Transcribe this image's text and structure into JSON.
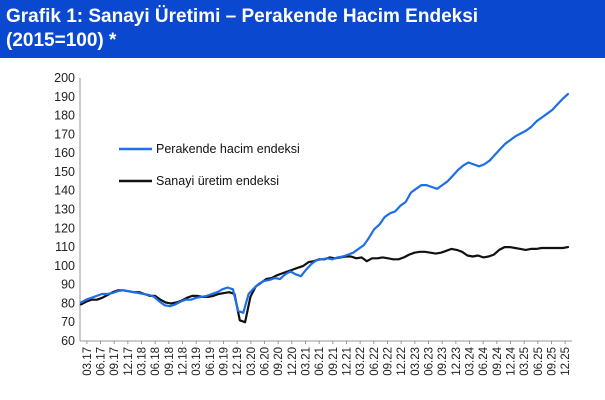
{
  "title": {
    "line1": "Grafik 1: Sanayi Üretimi – Perakende Hacim Endeksi",
    "line2": "(2015=100) *"
  },
  "chart_data": {
    "type": "line",
    "title": "Grafik 1: Sanayi Üretimi – Perakende Hacim Endeksi (2015=100) *",
    "ylim": [
      60,
      200
    ],
    "yticks": [
      60,
      70,
      80,
      90,
      100,
      110,
      120,
      130,
      140,
      150,
      160,
      170,
      180,
      190,
      200
    ],
    "grid": false,
    "legend_position": "upper-left",
    "xlabels": [
      "03.17",
      "06.17",
      "09.17",
      "12.17",
      "03.18",
      "06.18",
      "09.18",
      "12.18",
      "03.19",
      "06.19",
      "09.19",
      "12.19",
      "03.20",
      "06.20",
      "09.20",
      "12.20",
      "03.21",
      "06.21",
      "09.21",
      "12.21",
      "03.22",
      "06.22",
      "09.22",
      "12.22",
      "03.23",
      "06.23",
      "09.23",
      "12.23",
      "03.24",
      "06.24",
      "09.24",
      "12.24",
      "03.25",
      "06.25",
      "09.25",
      "12.25"
    ],
    "series": [
      {
        "name": "Perakende hacim endeksi",
        "color": "#1e6ee8",
        "values": [
          80.5,
          82,
          83,
          84,
          85,
          85,
          85.5,
          86.5,
          87,
          86.5,
          86,
          85.5,
          85,
          84.5,
          83.5,
          81,
          79,
          78.5,
          79.5,
          81,
          82,
          82,
          83,
          83.5,
          84,
          85,
          86,
          87.5,
          88.5,
          87.5,
          76,
          75,
          85,
          88,
          90.5,
          92,
          92.5,
          93.5,
          93,
          95.5,
          97,
          95.5,
          94.5,
          98,
          101,
          103,
          103.5,
          104,
          103.5,
          104.5,
          105,
          106,
          107,
          109,
          111,
          115,
          119.5,
          122,
          126,
          128,
          129,
          132,
          134,
          139,
          141,
          143,
          143,
          142,
          141,
          143,
          145,
          148,
          151,
          153.5,
          155,
          154,
          153,
          154,
          156,
          159,
          162,
          165,
          167,
          169,
          170.5,
          172,
          174,
          177,
          179,
          181,
          183,
          186,
          189,
          191.5
        ]
      },
      {
        "name": "Sanayi üretim endeksi",
        "color": "#111111",
        "values": [
          79.5,
          81,
          82,
          82,
          83,
          84.5,
          86,
          87,
          87,
          86.5,
          86,
          86,
          85,
          84,
          84,
          82,
          80.5,
          80,
          80.5,
          81.5,
          83,
          84,
          84,
          83.5,
          83.5,
          84,
          85,
          85.5,
          86,
          85,
          71,
          70,
          83.5,
          89,
          91,
          93,
          93.5,
          95,
          96,
          97,
          98,
          99,
          100,
          102,
          102.5,
          103.5,
          103.5,
          104.5,
          104,
          104.5,
          105,
          105,
          104,
          104.5,
          102.5,
          104,
          104,
          104.5,
          104,
          103.5,
          103.5,
          104.5,
          106,
          107,
          107.5,
          107.5,
          107,
          106.5,
          107,
          108,
          109,
          108.5,
          107.5,
          105.5,
          105,
          105.5,
          104.5,
          105,
          106,
          108.5,
          110,
          110,
          109.5,
          109,
          108.5,
          109,
          109,
          109.5,
          109.5,
          109.5,
          109.5,
          109.5,
          110
        ]
      }
    ]
  }
}
